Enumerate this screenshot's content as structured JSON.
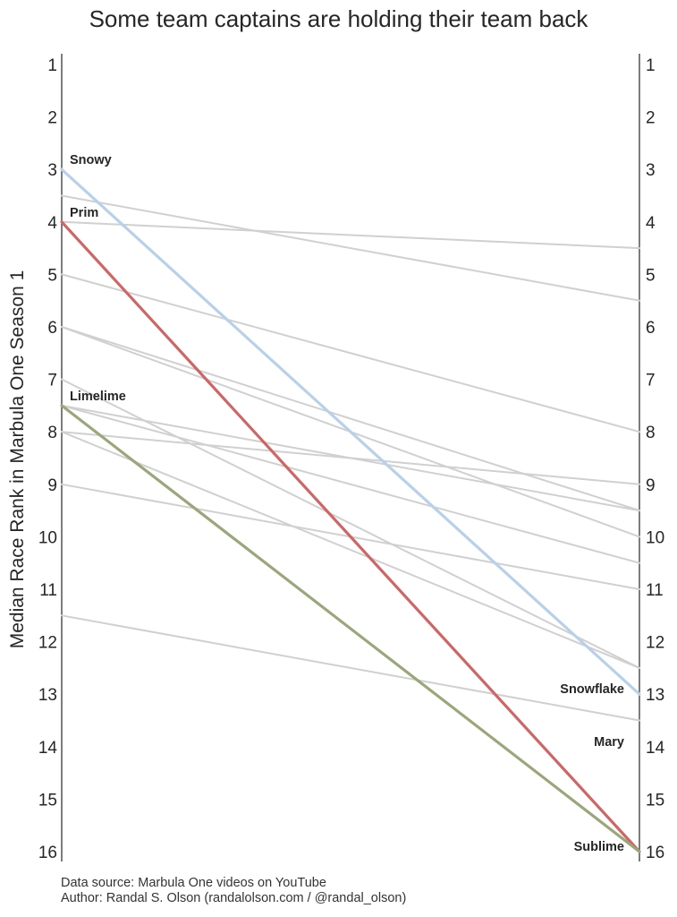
{
  "chart_data": {
    "type": "slope",
    "title": "Some team captains are holding their team back",
    "ylabel": "Median Race Rank in Marbula One Season 1",
    "ylim": [
      1,
      16
    ],
    "y_inverted": true,
    "ticks": [
      1,
      2,
      3,
      4,
      5,
      6,
      7,
      8,
      9,
      10,
      11,
      12,
      13,
      14,
      15,
      16
    ],
    "series": [
      {
        "name": "bg1",
        "left": 3.5,
        "right": 5.5,
        "color": "#d0d0d0",
        "highlight": false
      },
      {
        "name": "bg2",
        "left": 4.0,
        "right": 4.5,
        "color": "#d0d0d0",
        "highlight": false
      },
      {
        "name": "bg3",
        "left": 5.0,
        "right": 8.0,
        "color": "#d0d0d0",
        "highlight": false
      },
      {
        "name": "bg4",
        "left": 6.0,
        "right": 9.5,
        "color": "#d0d0d0",
        "highlight": false
      },
      {
        "name": "bg5",
        "left": 6.0,
        "right": 10.0,
        "color": "#d0d0d0",
        "highlight": false
      },
      {
        "name": "bg6",
        "left": 7.0,
        "right": 12.5,
        "color": "#d0d0d0",
        "highlight": false
      },
      {
        "name": "bg7",
        "left": 7.5,
        "right": 9.5,
        "color": "#d0d0d0",
        "highlight": false
      },
      {
        "name": "bg8",
        "left": 8.0,
        "right": 9.0,
        "color": "#d0d0d0",
        "highlight": false
      },
      {
        "name": "bg9",
        "left": 8.0,
        "right": 12.5,
        "color": "#d0d0d0",
        "highlight": false
      },
      {
        "name": "bg10",
        "left": 9.0,
        "right": 11.0,
        "color": "#d0d0d0",
        "highlight": false
      },
      {
        "name": "bg11",
        "left": 7.5,
        "right": 10.5,
        "color": "#d0d0d0",
        "highlight": false
      },
      {
        "name": "bg12",
        "left": 11.5,
        "right": 13.5,
        "color": "#d0d0d0",
        "highlight": false
      },
      {
        "name": "Snowflake",
        "left": 3.0,
        "right": 13.0,
        "color": "#b8d1ea",
        "highlight": true,
        "left_label": "Snowy",
        "right_label": "Snowflake"
      },
      {
        "name": "Mary",
        "left": 4.0,
        "right": 16.0,
        "color": "#d16464",
        "highlight": true,
        "left_label": "Prim",
        "right_label": "Mary"
      },
      {
        "name": "Sublime",
        "left": 7.5,
        "right": 16.0,
        "color": "#9aa77a",
        "highlight": true,
        "left_label": "Limelime",
        "right_label": "Sublime"
      }
    ]
  },
  "footer": {
    "source": "Data source: Marbula One videos on YouTube",
    "author": "Author: Randal S. Olson (randalolson.com / @randal_olson)"
  }
}
